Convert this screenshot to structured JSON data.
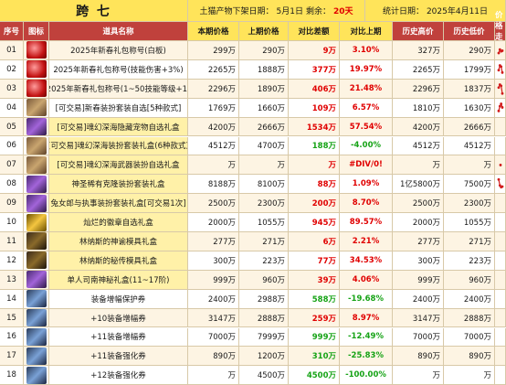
{
  "header": {
    "server": "跨 七",
    "offshelf_label": "土猫产物下架日期：",
    "offshelf_date": "5月1日",
    "remain_label": "剩余：",
    "remain_days": "20天",
    "stat_label": "统计日期：",
    "stat_date": "2025年4月11日"
  },
  "columns": [
    "序号",
    "图标",
    "道具名称",
    "本期价格",
    "上期价格",
    "对比差额",
    "对比上期",
    "历史高价",
    "历史低价",
    "价格走势"
  ],
  "rows": [
    {
      "no": "01",
      "icon": "red-bag-icon",
      "name": "2025年新春礼包称号(白板)",
      "cur": "299万",
      "prev": "290万",
      "diff": "9万",
      "pct": "3.10%",
      "dir": "up",
      "high": "327万",
      "low": "290万",
      "trend": [
        0.7,
        0.4,
        0.55,
        0.5
      ]
    },
    {
      "no": "02",
      "icon": "red-bag-icon",
      "name": "2025年新春礼包称号(技能伤害+3%)",
      "cur": "2265万",
      "prev": "1888万",
      "diff": "377万",
      "pct": "19.97%",
      "dir": "up",
      "high": "2265万",
      "low": "1799万",
      "trend": [
        0.6,
        0.2,
        0.3,
        0.8
      ]
    },
    {
      "no": "03",
      "icon": "red-bag-icon",
      "name": "2025年新春礼包称号(1~50技能等级+1)",
      "cur": "2296万",
      "prev": "1890万",
      "diff": "406万",
      "pct": "21.48%",
      "dir": "up",
      "high": "2296万",
      "low": "1837万",
      "trend": [
        0.45,
        0.2,
        0.3,
        0.95
      ]
    },
    {
      "no": "04",
      "icon": "box-icon",
      "name": "[可交易]新春装扮套装自选[5种款式]",
      "cur": "1769万",
      "prev": "1660万",
      "diff": "109万",
      "pct": "6.57%",
      "dir": "up",
      "high": "1810万",
      "low": "1630万",
      "trend": [
        0.8,
        0.4,
        0.2,
        0.5
      ]
    },
    {
      "no": "05",
      "icon": "purple-chest-icon",
      "name": "[可交易]魂幻深海隐藏宠物自选礼盒",
      "cur": "4200万",
      "prev": "2666万",
      "diff": "1534万",
      "pct": "57.54%",
      "dir": "up",
      "high": "4200万",
      "low": "2666万",
      "trend": []
    },
    {
      "no": "06",
      "icon": "box-icon",
      "name": "[可交易]魂幻深海装扮套装礼盒(6种款式)",
      "cur": "4512万",
      "prev": "4700万",
      "diff": "188万",
      "pct": "-4.00%",
      "dir": "down",
      "high": "4512万",
      "low": "4512万",
      "trend": []
    },
    {
      "no": "07",
      "icon": "box-icon",
      "name": "[可交易]魂幻深海武器装扮自选礼盒",
      "cur": "万",
      "prev": "万",
      "diff": "万",
      "pct": "#DIV/0!",
      "dir": "up",
      "high": "万",
      "low": "万",
      "trend": [
        0.5
      ]
    },
    {
      "no": "08",
      "icon": "purple-chest-icon",
      "name": "神圣稀有克隆装扮套装礼盒",
      "cur": "8188万",
      "prev": "8100万",
      "diff": "88万",
      "pct": "1.09%",
      "dir": "up",
      "high": "1亿5800万",
      "low": "7500万",
      "trend": [
        0.1,
        0.6,
        0.75,
        0.7
      ]
    },
    {
      "no": "09",
      "icon": "purple-chest-icon",
      "name": "兔女郎与执事装扮套装礼盒[可交易1次]",
      "cur": "2500万",
      "prev": "2300万",
      "diff": "200万",
      "pct": "8.70%",
      "dir": "up",
      "high": "2500万",
      "low": "2300万",
      "trend": []
    },
    {
      "no": "10",
      "icon": "gold-chest-icon",
      "name": "灿烂的徽章自选礼盒",
      "cur": "2000万",
      "prev": "1055万",
      "diff": "945万",
      "pct": "89.57%",
      "dir": "up",
      "high": "2000万",
      "low": "1055万",
      "trend": []
    },
    {
      "no": "11",
      "icon": "dark-box-icon",
      "name": "林纳斯的神谕模具礼盒",
      "cur": "277万",
      "prev": "271万",
      "diff": "6万",
      "pct": "2.21%",
      "dir": "up",
      "high": "277万",
      "low": "271万",
      "trend": []
    },
    {
      "no": "12",
      "icon": "dark-box-icon",
      "name": "林纳斯的秘传模具礼盒",
      "cur": "300万",
      "prev": "223万",
      "diff": "77万",
      "pct": "34.53%",
      "dir": "up",
      "high": "300万",
      "low": "223万",
      "trend": []
    },
    {
      "no": "13",
      "icon": "purple-chest-icon",
      "name": "单人司南神秘礼盒(11~17阶)",
      "cur": "999万",
      "prev": "960万",
      "diff": "39万",
      "pct": "4.06%",
      "dir": "up",
      "high": "999万",
      "low": "960万",
      "trend": []
    },
    {
      "no": "14",
      "icon": "stone-icon",
      "name": "装备增幅保护券",
      "cur": "2400万",
      "prev": "2988万",
      "diff": "588万",
      "pct": "-19.68%",
      "dir": "down",
      "high": "2400万",
      "low": "2400万",
      "trend": []
    },
    {
      "no": "15",
      "icon": "stone-icon",
      "name": "+10装备增幅券",
      "cur": "3147万",
      "prev": "2888万",
      "diff": "259万",
      "pct": "8.97%",
      "dir": "up",
      "high": "3147万",
      "low": "2888万",
      "trend": []
    },
    {
      "no": "16",
      "icon": "stone-icon",
      "name": "+11装备增幅券",
      "cur": "7000万",
      "prev": "7999万",
      "diff": "999万",
      "pct": "-12.49%",
      "dir": "down",
      "high": "7000万",
      "low": "7000万",
      "trend": []
    },
    {
      "no": "17",
      "icon": "stone-icon",
      "name": "+11装备强化券",
      "cur": "890万",
      "prev": "1200万",
      "diff": "310万",
      "pct": "-25.83%",
      "dir": "down",
      "high": "890万",
      "low": "890万",
      "trend": []
    },
    {
      "no": "18",
      "icon": "stone-icon",
      "name": "+12装备强化券",
      "cur": "万",
      "prev": "4500万",
      "diff": "4500万",
      "pct": "-100.00%",
      "dir": "down",
      "high": "万",
      "low": "万",
      "trend": []
    }
  ]
}
